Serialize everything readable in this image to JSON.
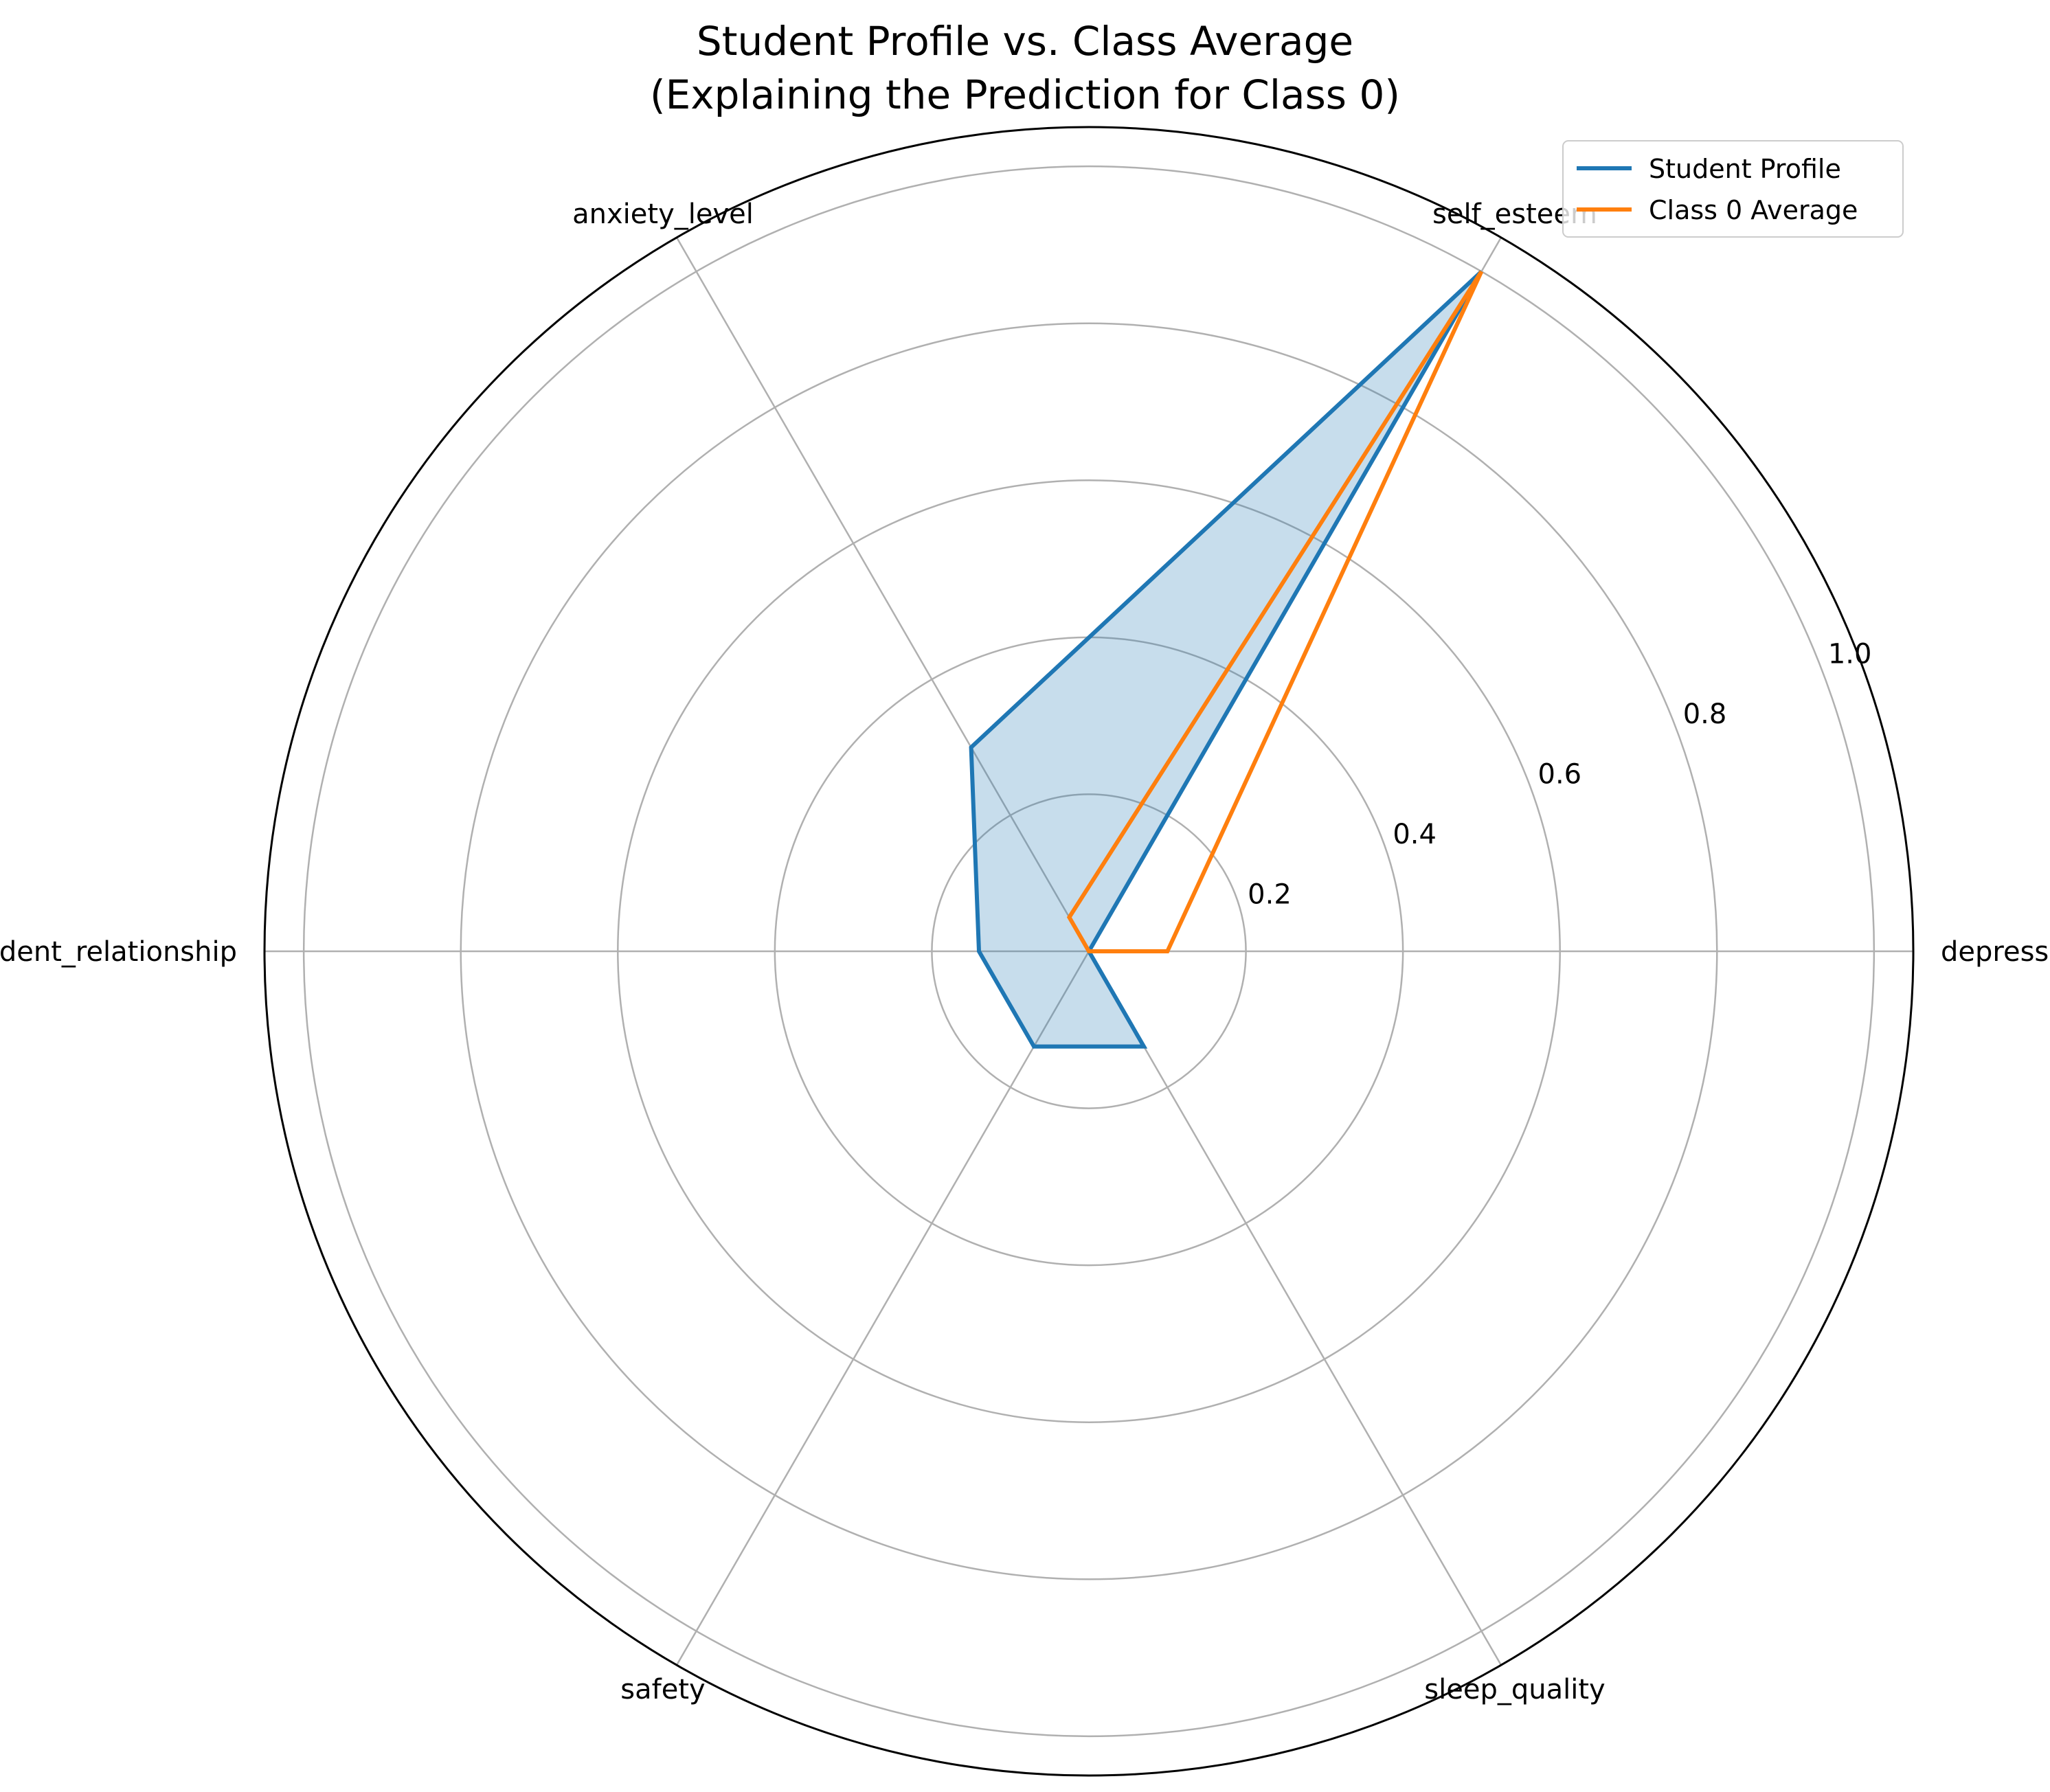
{
  "chart_data": {
    "type": "radar",
    "title_lines": [
      "Student Profile vs. Class Average",
      "(Explaining the Prediction for Class 0)"
    ],
    "categories": [
      "depression",
      "self_esteem",
      "anxiety_level",
      "teacher_student_relationship",
      "safety",
      "sleep_quality"
    ],
    "series": [
      {
        "name": "Student Profile",
        "values": [
          0.0,
          1.0,
          0.3,
          0.14,
          0.14,
          0.14
        ],
        "color": "#1f77b4",
        "fill": true
      },
      {
        "name": "Class 0 Average",
        "values": [
          0.1,
          1.0,
          0.05,
          0.0,
          0.0,
          0.0
        ],
        "color": "#ff7f0e",
        "fill": false
      }
    ],
    "rlim": [
      0,
      1.05
    ],
    "r_ticks": [
      0.2,
      0.4,
      0.6,
      0.8,
      1.0
    ],
    "r_tick_labels": [
      "0.2",
      "0.4",
      "0.6",
      "0.8",
      "1.0"
    ],
    "grid": true,
    "legend_position": "top-right",
    "colors": {
      "grid": "#b0b0b0",
      "frame": "#000000"
    }
  }
}
